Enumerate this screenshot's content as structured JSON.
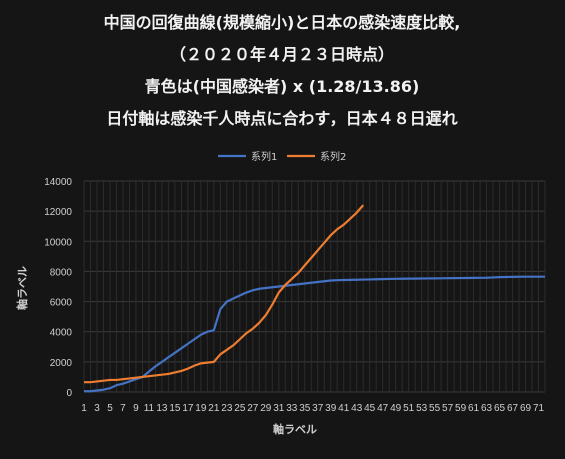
{
  "chart_data": {
    "type": "line",
    "title_lines": [
      "中国の回復曲線(規模縮小)と日本の感染速度比較,",
      "（２０２０年４月２３日時点）",
      "青色は(中国感染者) x (1.28/13.86)",
      "日付軸は感染千人時点に合わす，日本４８日遅れ"
    ],
    "xlabel": "軸ラベル",
    "ylabel": "軸ラベル",
    "ylim": [
      0,
      14000
    ],
    "yticks": [
      0,
      2000,
      4000,
      6000,
      8000,
      10000,
      12000,
      14000
    ],
    "ytick_labels": [
      "0",
      "2000",
      "4000",
      "6000",
      "8000",
      "10000",
      "12000",
      "14000"
    ],
    "x_categories_count": 72,
    "xtick_labels": [
      "1",
      "3",
      "5",
      "7",
      "9",
      "11",
      "13",
      "15",
      "17",
      "19",
      "21",
      "23",
      "25",
      "27",
      "29",
      "31",
      "33",
      "35",
      "37",
      "39",
      "41",
      "43",
      "45",
      "47",
      "49",
      "51",
      "53",
      "55",
      "57",
      "59",
      "61",
      "63",
      "65",
      "67",
      "69",
      "71"
    ],
    "legend": {
      "position": "top"
    },
    "grid": true,
    "series": [
      {
        "name": "系列1",
        "color": "#4472c4",
        "x": [
          1,
          2,
          3,
          4,
          5,
          6,
          7,
          8,
          9,
          10,
          11,
          12,
          13,
          14,
          15,
          16,
          17,
          18,
          19,
          20,
          21,
          22,
          23,
          24,
          25,
          26,
          27,
          28,
          29,
          30,
          31,
          32,
          33,
          34,
          35,
          36,
          37,
          38,
          39,
          40,
          41,
          42,
          43,
          44,
          45,
          46,
          47,
          48,
          49,
          50,
          51,
          52,
          53,
          54,
          55,
          56,
          57,
          58,
          59,
          60,
          61,
          62,
          63,
          64,
          65,
          66,
          67,
          68,
          69,
          70,
          71,
          72
        ],
        "values": [
          50,
          50,
          100,
          150,
          250,
          450,
          550,
          700,
          850,
          1000,
          1350,
          1700,
          2000,
          2300,
          2600,
          2900,
          3200,
          3500,
          3800,
          4000,
          4100,
          5500,
          6000,
          6200,
          6400,
          6600,
          6750,
          6850,
          6900,
          6950,
          7000,
          7050,
          7100,
          7150,
          7200,
          7250,
          7300,
          7350,
          7400,
          7420,
          7430,
          7440,
          7450,
          7460,
          7470,
          7480,
          7490,
          7500,
          7510,
          7515,
          7520,
          7525,
          7530,
          7535,
          7540,
          7545,
          7550,
          7555,
          7560,
          7565,
          7570,
          7575,
          7580,
          7600,
          7620,
          7630,
          7640,
          7645,
          7650,
          7650,
          7650,
          7650
        ]
      },
      {
        "name": "系列2",
        "color": "#ed7d31",
        "x": [
          1,
          2,
          3,
          4,
          5,
          6,
          7,
          8,
          9,
          10,
          11,
          12,
          13,
          14,
          15,
          16,
          17,
          18,
          19,
          20,
          21,
          22,
          23,
          24,
          25,
          26,
          27,
          28,
          29,
          30,
          31,
          32,
          33,
          34,
          35,
          36,
          37,
          38,
          39,
          40,
          41,
          42,
          43,
          44,
          45
        ],
        "values": [
          650,
          650,
          700,
          750,
          800,
          800,
          850,
          900,
          950,
          1000,
          1050,
          1100,
          1150,
          1200,
          1300,
          1400,
          1550,
          1750,
          1900,
          1950,
          2000,
          2500,
          2800,
          3100,
          3500,
          3900,
          4200,
          4600,
          5100,
          5800,
          6600,
          7100,
          7500,
          7900,
          8400,
          8900,
          9400,
          9900,
          10400,
          10800,
          11100,
          11500,
          11900,
          12400,
          null
        ]
      }
    ]
  }
}
